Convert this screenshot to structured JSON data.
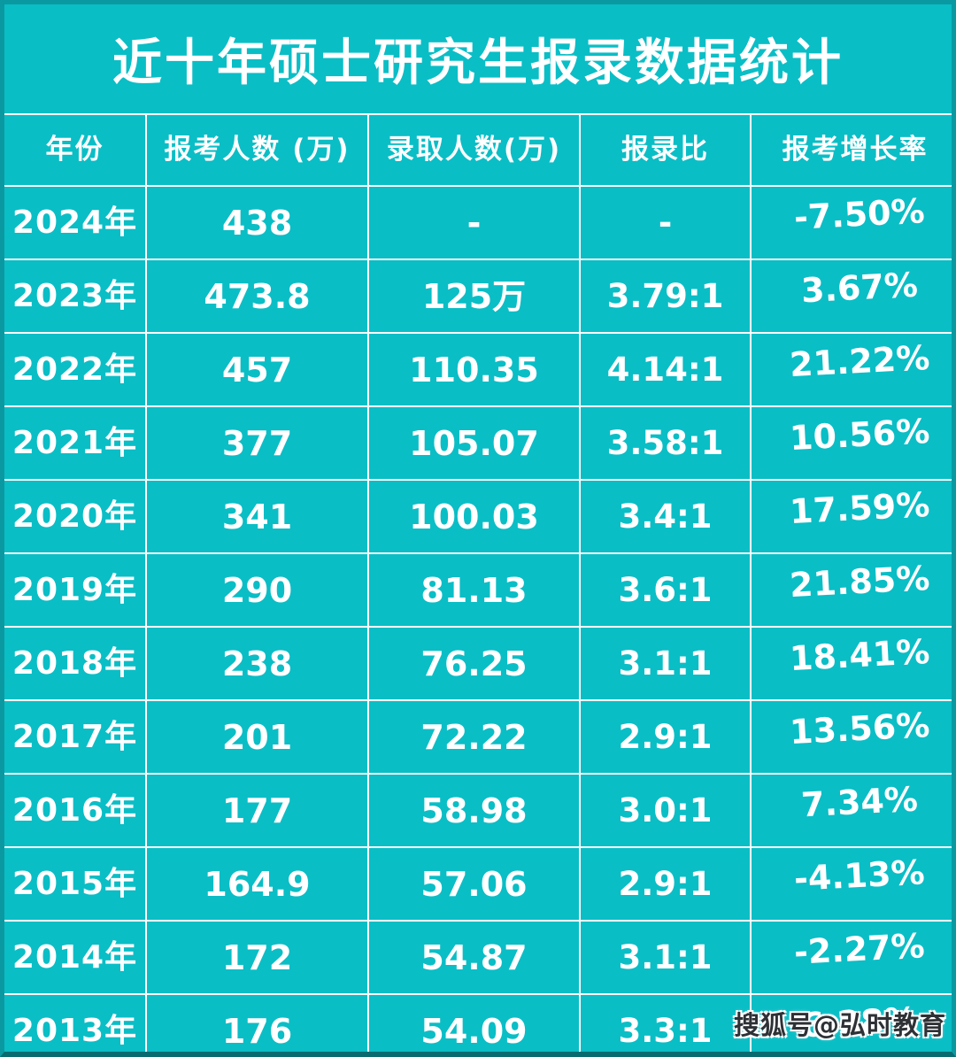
{
  "title": "近十年硕士研究生报录数据统计",
  "columns": [
    "年份",
    "报考人数 (万)",
    "录取人数(万)",
    "报录比",
    "报考增长率"
  ],
  "rows": [
    {
      "year": "2024年",
      "applicants": "438",
      "admitted": "-",
      "ratio": "-",
      "growth": "-7.50%"
    },
    {
      "year": "2023年",
      "applicants": "473.8",
      "admitted": "125万",
      "ratio": "3.79:1",
      "growth": "3.67%"
    },
    {
      "year": "2022年",
      "applicants": "457",
      "admitted": "110.35",
      "ratio": "4.14:1",
      "growth": "21.22%"
    },
    {
      "year": "2021年",
      "applicants": "377",
      "admitted": "105.07",
      "ratio": "3.58:1",
      "growth": "10.56%"
    },
    {
      "year": "2020年",
      "applicants": "341",
      "admitted": "100.03",
      "ratio": "3.4:1",
      "growth": "17.59%"
    },
    {
      "year": "2019年",
      "applicants": "290",
      "admitted": "81.13",
      "ratio": "3.6:1",
      "growth": "21.85%"
    },
    {
      "year": "2018年",
      "applicants": "238",
      "admitted": "76.25",
      "ratio": "3.1:1",
      "growth": "18.41%"
    },
    {
      "year": "2017年",
      "applicants": "201",
      "admitted": "72.22",
      "ratio": "2.9:1",
      "growth": "13.56%"
    },
    {
      "year": "2016年",
      "applicants": "177",
      "admitted": "58.98",
      "ratio": "3.0:1",
      "growth": "7.34%"
    },
    {
      "year": "2015年",
      "applicants": "164.9",
      "admitted": "57.06",
      "ratio": "2.9:1",
      "growth": "-4.13%"
    },
    {
      "year": "2014年",
      "applicants": "172",
      "admitted": "54.87",
      "ratio": "3.1:1",
      "growth": "-2.27%"
    },
    {
      "year": "2013年",
      "applicants": "176",
      "admitted": "54.09",
      "ratio": "3.3:1",
      "growth": "6.28%"
    }
  ],
  "watermark": "搜狐号@弘时教育",
  "colors": {
    "background": "#0abec6",
    "grid_line": "#ffffff",
    "text": "#ffffff",
    "edge": "#0a99a1",
    "edge_bottom": "#076b70",
    "watermark_text": "#2e3135"
  },
  "chart_data": {
    "type": "table",
    "title": "近十年硕士研究生报录数据统计",
    "columns": [
      "年份",
      "报考人数 (万)",
      "录取人数(万)",
      "报录比",
      "报考增长率"
    ],
    "rows": [
      [
        "2024年",
        "438",
        "-",
        "-",
        "-7.50%"
      ],
      [
        "2023年",
        "473.8",
        "125万",
        "3.79:1",
        "3.67%"
      ],
      [
        "2022年",
        "457",
        "110.35",
        "4.14:1",
        "21.22%"
      ],
      [
        "2021年",
        "377",
        "105.07",
        "3.58:1",
        "10.56%"
      ],
      [
        "2020年",
        "341",
        "100.03",
        "3.4:1",
        "17.59%"
      ],
      [
        "2019年",
        "290",
        "81.13",
        "3.6:1",
        "21.85%"
      ],
      [
        "2018年",
        "238",
        "76.25",
        "3.1:1",
        "18.41%"
      ],
      [
        "2017年",
        "201",
        "72.22",
        "2.9:1",
        "13.56%"
      ],
      [
        "2016年",
        "177",
        "58.98",
        "3.0:1",
        "7.34%"
      ],
      [
        "2015年",
        "164.9",
        "57.06",
        "2.9:1",
        "-4.13%"
      ],
      [
        "2014年",
        "172",
        "54.87",
        "3.1:1",
        "-2.27%"
      ],
      [
        "2013年",
        "176",
        "54.09",
        "3.3:1",
        "6.28%"
      ]
    ]
  }
}
